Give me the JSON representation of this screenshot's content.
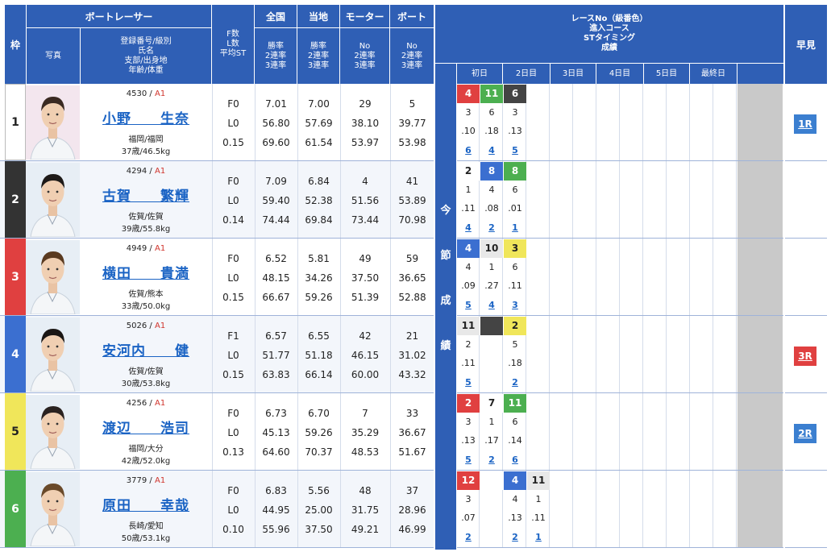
{
  "header": {
    "waku": "枠",
    "racer": "ボートレーサー",
    "photo": "写真",
    "info_lines": [
      "登録番号/級別",
      "氏名",
      "支部/出身地",
      "年齢/体重"
    ],
    "f_lines": [
      "F数",
      "L数",
      "平均ST"
    ],
    "zenkoku": "全国",
    "zenkoku_lines": [
      "勝率",
      "2連率",
      "3連率"
    ],
    "touchi": "当地",
    "touchi_lines": [
      "勝率",
      "2連率",
      "3連率"
    ],
    "motor": "モーター",
    "motor_lines": [
      "No",
      "2連率",
      "3連率"
    ],
    "boat": "ボート",
    "boat_lines": [
      "No",
      "2連率",
      "3連率"
    ],
    "race_lines": [
      "レースNo（級番色）",
      "進入コース",
      "STタイミング",
      "成績"
    ],
    "days": [
      "初日",
      "2日目",
      "3日目",
      "4日目",
      "5日目",
      "最終日"
    ],
    "hayami": "早見",
    "konsetsu": [
      "今",
      "節",
      "成",
      "績"
    ]
  },
  "racers": [
    {
      "waku": "1",
      "reg": "4530",
      "cls": "A1",
      "name": "小野　　生奈",
      "branch": "福岡/福岡",
      "age": "37歳/46.5kg",
      "f": "F0",
      "l": "L0",
      "st": "0.15",
      "zenkoku": [
        "7.01",
        "56.80",
        "69.60"
      ],
      "touchi": [
        "7.00",
        "57.69",
        "61.54"
      ],
      "motor": [
        "29",
        "38.10",
        "53.97"
      ],
      "boat": [
        "5",
        "39.77",
        "53.98"
      ],
      "results": [
        {
          "race": "4",
          "race_color": "red",
          "course": "3",
          "st": ".10",
          "rank": "6"
        },
        {
          "race": "11",
          "race_color": "green",
          "course": "6",
          "st": ".18",
          "rank": "4"
        },
        {
          "race": "6",
          "race_color": "dark",
          "course": "3",
          "st": ".13",
          "rank": "5"
        }
      ],
      "hayami": "1R",
      "hayami_color": "blue"
    },
    {
      "waku": "2",
      "reg": "4294",
      "cls": "A1",
      "name": "古賀　　繁輝",
      "branch": "佐賀/佐賀",
      "age": "39歳/55.8kg",
      "f": "F0",
      "l": "L0",
      "st": "0.14",
      "zenkoku": [
        "7.09",
        "59.40",
        "74.44"
      ],
      "touchi": [
        "6.84",
        "52.38",
        "69.84"
      ],
      "motor": [
        "4",
        "51.56",
        "73.44"
      ],
      "boat": [
        "41",
        "53.89",
        "70.98"
      ],
      "results": [
        {
          "race": "2",
          "race_color": "white",
          "course": "1",
          "st": ".11",
          "rank": "4"
        },
        {
          "race": "8",
          "race_color": "blue",
          "course": "4",
          "st": ".08",
          "rank": "2"
        },
        {
          "race": "8",
          "race_color": "green",
          "course": "6",
          "st": ".01",
          "rank": "1"
        }
      ],
      "hayami": "",
      "hayami_color": ""
    },
    {
      "waku": "3",
      "reg": "4949",
      "cls": "A1",
      "name": "横田　　貴満",
      "branch": "佐賀/熊本",
      "age": "33歳/50.0kg",
      "f": "F0",
      "l": "L0",
      "st": "0.15",
      "zenkoku": [
        "6.52",
        "48.15",
        "66.67"
      ],
      "touchi": [
        "5.81",
        "34.26",
        "59.26"
      ],
      "motor": [
        "49",
        "37.50",
        "51.39"
      ],
      "boat": [
        "59",
        "36.65",
        "52.88"
      ],
      "results": [
        {
          "race": "4",
          "race_color": "blue",
          "course": "4",
          "st": ".09",
          "rank": "5"
        },
        {
          "race": "10",
          "race_color": "grey",
          "course": "1",
          "st": ".27",
          "rank": "4"
        },
        {
          "race": "3",
          "race_color": "yellow",
          "course": "6",
          "st": ".11",
          "rank": "3"
        }
      ],
      "hayami": "",
      "hayami_color": ""
    },
    {
      "waku": "4",
      "reg": "5026",
      "cls": "A1",
      "name": "安河内　　健",
      "branch": "佐賀/佐賀",
      "age": "30歳/53.8kg",
      "f": "F1",
      "l": "L0",
      "st": "0.15",
      "zenkoku": [
        "6.57",
        "51.77",
        "63.83"
      ],
      "touchi": [
        "6.55",
        "51.18",
        "66.14"
      ],
      "motor": [
        "42",
        "46.15",
        "60.00"
      ],
      "boat": [
        "21",
        "31.02",
        "43.32"
      ],
      "results": [
        {
          "race": "11",
          "race_color": "grey",
          "course": "2",
          "st": ".11",
          "rank": "5"
        },
        {
          "race": "",
          "race_color": "dark",
          "course": "",
          "st": "",
          "rank": ""
        },
        {
          "race": "2",
          "race_color": "yellow",
          "course": "5",
          "st": ".18",
          "rank": "2"
        }
      ],
      "hayami": "3R",
      "hayami_color": "red"
    },
    {
      "waku": "5",
      "reg": "4256",
      "cls": "A1",
      "name": "渡辺　　浩司",
      "branch": "福岡/大分",
      "age": "42歳/52.0kg",
      "f": "F0",
      "l": "L0",
      "st": "0.13",
      "zenkoku": [
        "6.73",
        "45.13",
        "64.60"
      ],
      "touchi": [
        "6.70",
        "59.26",
        "70.37"
      ],
      "motor": [
        "7",
        "35.29",
        "48.53"
      ],
      "boat": [
        "33",
        "36.67",
        "51.67"
      ],
      "results": [
        {
          "race": "2",
          "race_color": "red",
          "course": "3",
          "st": ".13",
          "rank": "5"
        },
        {
          "race": "7",
          "race_color": "white",
          "course": "1",
          "st": ".17",
          "rank": "2"
        },
        {
          "race": "11",
          "race_color": "green",
          "course": "6",
          "st": ".14",
          "rank": "6"
        }
      ],
      "hayami": "2R",
      "hayami_color": "blue"
    },
    {
      "waku": "6",
      "reg": "3779",
      "cls": "A1",
      "name": "原田　　幸哉",
      "branch": "長崎/愛知",
      "age": "50歳/53.1kg",
      "f": "F0",
      "l": "L0",
      "st": "0.10",
      "zenkoku": [
        "6.83",
        "44.95",
        "55.96"
      ],
      "touchi": [
        "5.56",
        "25.00",
        "37.50"
      ],
      "motor": [
        "48",
        "31.75",
        "49.21"
      ],
      "boat": [
        "37",
        "28.96",
        "46.99"
      ],
      "results": [
        {
          "race": "12",
          "race_color": "red",
          "course": "3",
          "st": ".07",
          "rank": "2"
        },
        {
          "race": "",
          "race_color": "white",
          "course": "",
          "st": "",
          "rank": ""
        },
        {
          "race": "4",
          "race_color": "blue",
          "course": "4",
          "st": ".13",
          "rank": "2"
        },
        {
          "race": "11",
          "race_color": "grey",
          "course": "1",
          "st": ".11",
          "rank": "1"
        }
      ],
      "hayami": "",
      "hayami_color": ""
    }
  ],
  "colors": {
    "header": "#2f5fb5",
    "waku": [
      "#ffffff",
      "#333333",
      "#e04040",
      "#3b6fd0",
      "#f0e65a",
      "#4caf50"
    ],
    "name_link": "#1a63c4",
    "class_red": "#d0342c"
  }
}
